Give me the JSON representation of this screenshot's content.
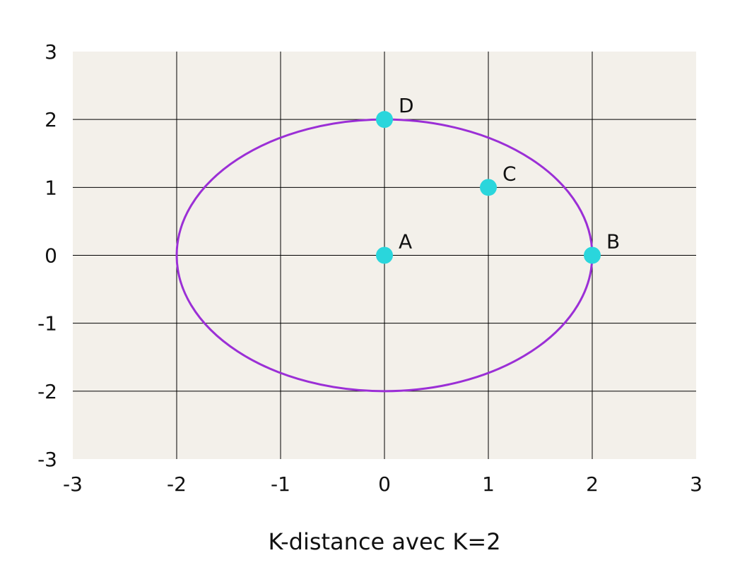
{
  "chart_data": {
    "type": "scatter",
    "title": "",
    "xlabel": "K-distance avec K=2",
    "ylabel": "",
    "xlim": [
      -3,
      3
    ],
    "ylim": [
      -3,
      3
    ],
    "grid": true,
    "x_ticks": [
      -3,
      -2,
      -1,
      0,
      1,
      2,
      3
    ],
    "y_ticks": [
      -3,
      -2,
      -1,
      0,
      1,
      2,
      3
    ],
    "x_tick_labels": [
      "-3",
      "-2",
      "-1",
      "0",
      "1",
      "2",
      "3"
    ],
    "y_tick_labels": [
      "-3",
      "-2",
      "-1",
      "0",
      "1",
      "2",
      "3"
    ],
    "points": [
      {
        "label": "A",
        "x": 0,
        "y": 0
      },
      {
        "label": "B",
        "x": 2,
        "y": 0
      },
      {
        "label": "C",
        "x": 1,
        "y": 1
      },
      {
        "label": "D",
        "x": 0,
        "y": 2
      }
    ],
    "circle": {
      "center_x": 0,
      "center_y": 0,
      "radius": 2
    },
    "colors": {
      "plot_background": "#f3f0ea",
      "grid": "#000000",
      "points": "#2ad6dc",
      "circle": "#9b2fd6"
    }
  }
}
